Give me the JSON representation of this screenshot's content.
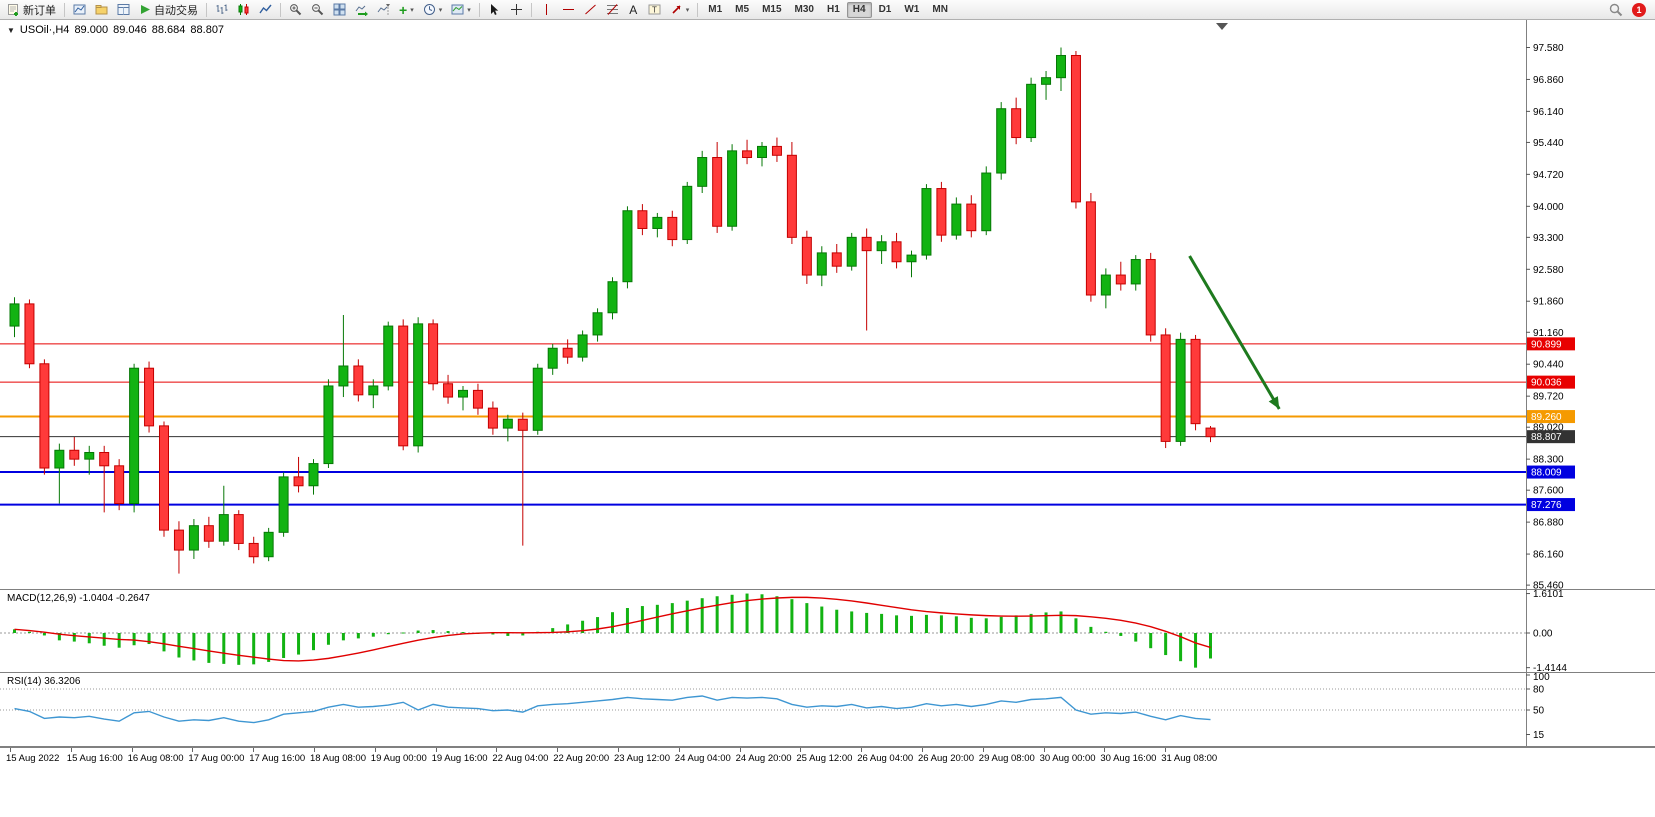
{
  "toolbar": {
    "new_order_label": "新订单",
    "autotrading_label": "自动交易",
    "timeframes": [
      "M1",
      "M5",
      "M15",
      "M30",
      "H1",
      "H4",
      "D1",
      "W1",
      "MN"
    ],
    "active_timeframe": "H4",
    "notification_count": "1"
  },
  "chart_header": {
    "symbol_period": "USOil·,H4",
    "open": "89.000",
    "high": "89.046",
    "low": "88.684",
    "close": "88.807"
  },
  "indicators": {
    "macd_label": "MACD(12,26,9)",
    "macd_main": "-1.0404",
    "macd_signal": "-0.2647",
    "rsi_label": "RSI(14)",
    "rsi_value": "36.3206"
  },
  "axes": {
    "price_ticks": [
      "97.580",
      "96.860",
      "96.140",
      "95.440",
      "94.720",
      "94.000",
      "93.300",
      "92.580",
      "91.860",
      "91.160",
      "90.440",
      "89.720",
      "89.020",
      "88.300",
      "87.600",
      "86.880",
      "86.160",
      "85.460"
    ],
    "macd_ticks": [
      "1.6101",
      "0.00",
      "-1.4144"
    ],
    "rsi_ticks": [
      "100",
      "80",
      "50",
      "15"
    ],
    "time_labels": [
      "15 Aug 2022",
      "15 Aug 16:00",
      "16 Aug 08:00",
      "17 Aug 00:00",
      "17 Aug 16:00",
      "18 Aug 08:00",
      "19 Aug 00:00",
      "19 Aug 16:00",
      "22 Aug 04:00",
      "22 Aug 20:00",
      "23 Aug 12:00",
      "24 Aug 04:00",
      "24 Aug 20:00",
      "25 Aug 12:00",
      "26 Aug 04:00",
      "26 Aug 20:00",
      "29 Aug 08:00",
      "30 Aug 00:00",
      "30 Aug 16:00",
      "31 Aug 08:00"
    ]
  },
  "levels": [
    {
      "price": 90.899,
      "label": "90.899",
      "color": "#E80000",
      "width": 1
    },
    {
      "price": 90.036,
      "label": "90.036",
      "color": "#E80000",
      "width": 1
    },
    {
      "price": 89.26,
      "label": "89.260",
      "color": "#F59A00",
      "width": 2
    },
    {
      "price": 88.807,
      "label": "88.807",
      "color": "#333333",
      "width": 1
    },
    {
      "price": 88.009,
      "label": "88.009",
      "color": "#0000E0",
      "width": 2
    },
    {
      "price": 87.276,
      "label": "87.276",
      "color": "#0000E0",
      "width": 2
    }
  ],
  "colors": {
    "up": "#12B312",
    "up_border": "#067806",
    "down": "#FF3A3A",
    "down_border": "#C40000",
    "macd_bar": "#12B312",
    "macd_signal": "#E00000",
    "rsi_line": "#3E96D2",
    "axis": "#808080",
    "arrow": "#1E7A1E"
  },
  "chart_data": {
    "type": "candlestick",
    "symbol": "USOil",
    "timeframe": "H4",
    "price_range": [
      85.35,
      98.2
    ],
    "candles": [
      [
        91.3,
        91.95,
        91.05,
        91.8
      ],
      [
        91.8,
        91.9,
        90.35,
        90.45
      ],
      [
        90.45,
        90.55,
        87.95,
        88.1
      ],
      [
        88.1,
        88.65,
        87.3,
        88.5
      ],
      [
        88.5,
        88.8,
        88.15,
        88.3
      ],
      [
        88.3,
        88.6,
        87.95,
        88.45
      ],
      [
        88.45,
        88.6,
        87.1,
        88.15
      ],
      [
        88.15,
        88.3,
        87.15,
        87.3
      ],
      [
        87.3,
        90.45,
        87.1,
        90.35
      ],
      [
        90.35,
        90.5,
        88.9,
        89.05
      ],
      [
        89.05,
        89.15,
        86.55,
        86.7
      ],
      [
        86.7,
        86.9,
        85.72,
        86.25
      ],
      [
        86.25,
        86.95,
        86.05,
        86.8
      ],
      [
        86.8,
        87.0,
        86.3,
        86.45
      ],
      [
        86.45,
        87.7,
        86.35,
        87.05
      ],
      [
        87.05,
        87.15,
        86.25,
        86.4
      ],
      [
        86.4,
        86.55,
        85.95,
        86.1
      ],
      [
        86.1,
        86.75,
        86.0,
        86.65
      ],
      [
        86.65,
        88.0,
        86.55,
        87.9
      ],
      [
        87.9,
        88.35,
        87.55,
        87.7
      ],
      [
        87.7,
        88.3,
        87.5,
        88.2
      ],
      [
        88.2,
        90.1,
        88.1,
        89.95
      ],
      [
        89.95,
        91.55,
        89.7,
        90.4
      ],
      [
        90.4,
        90.55,
        89.6,
        89.75
      ],
      [
        89.75,
        90.1,
        89.45,
        89.95
      ],
      [
        89.95,
        91.4,
        89.85,
        91.3
      ],
      [
        91.3,
        91.45,
        88.5,
        88.6
      ],
      [
        88.6,
        91.5,
        88.45,
        91.35
      ],
      [
        91.35,
        91.45,
        89.85,
        90.0
      ],
      [
        90.0,
        90.2,
        89.55,
        89.7
      ],
      [
        89.7,
        89.95,
        89.4,
        89.85
      ],
      [
        89.85,
        90.0,
        89.3,
        89.45
      ],
      [
        89.45,
        89.6,
        88.85,
        89.0
      ],
      [
        89.0,
        89.3,
        88.7,
        89.2
      ],
      [
        89.2,
        89.35,
        86.35,
        88.95
      ],
      [
        88.95,
        90.45,
        88.85,
        90.35
      ],
      [
        90.35,
        90.9,
        90.2,
        90.8
      ],
      [
        90.8,
        91.0,
        90.45,
        90.6
      ],
      [
        90.6,
        91.2,
        90.5,
        91.1
      ],
      [
        91.1,
        91.7,
        90.95,
        91.6
      ],
      [
        91.6,
        92.4,
        91.45,
        92.3
      ],
      [
        92.3,
        94.0,
        92.15,
        93.9
      ],
      [
        93.9,
        94.05,
        93.35,
        93.5
      ],
      [
        93.5,
        93.85,
        93.3,
        93.75
      ],
      [
        93.75,
        93.9,
        93.1,
        93.25
      ],
      [
        93.25,
        94.55,
        93.15,
        94.45
      ],
      [
        94.45,
        95.25,
        94.3,
        95.1
      ],
      [
        95.1,
        95.45,
        93.4,
        93.55
      ],
      [
        93.55,
        95.4,
        93.45,
        95.25
      ],
      [
        95.25,
        95.5,
        94.95,
        95.1
      ],
      [
        95.1,
        95.45,
        94.9,
        95.35
      ],
      [
        95.35,
        95.55,
        95.0,
        95.15
      ],
      [
        95.15,
        95.45,
        93.15,
        93.3
      ],
      [
        93.3,
        93.45,
        92.25,
        92.45
      ],
      [
        92.45,
        93.1,
        92.2,
        92.95
      ],
      [
        92.95,
        93.15,
        92.5,
        92.65
      ],
      [
        92.65,
        93.4,
        92.55,
        93.3
      ],
      [
        93.3,
        93.5,
        91.2,
        93.0
      ],
      [
        93.0,
        93.35,
        92.7,
        93.2
      ],
      [
        93.2,
        93.4,
        92.6,
        92.75
      ],
      [
        92.75,
        93.0,
        92.4,
        92.9
      ],
      [
        92.9,
        94.5,
        92.8,
        94.4
      ],
      [
        94.4,
        94.55,
        93.2,
        93.35
      ],
      [
        93.35,
        94.2,
        93.25,
        94.05
      ],
      [
        94.05,
        94.25,
        93.3,
        93.45
      ],
      [
        93.45,
        94.9,
        93.35,
        94.75
      ],
      [
        94.75,
        96.35,
        94.6,
        96.2
      ],
      [
        96.2,
        96.45,
        95.4,
        95.55
      ],
      [
        95.55,
        96.9,
        95.45,
        96.75
      ],
      [
        96.75,
        97.05,
        96.4,
        96.9
      ],
      [
        96.9,
        97.58,
        96.6,
        97.4
      ],
      [
        97.4,
        97.5,
        93.95,
        94.1
      ],
      [
        94.1,
        94.3,
        91.85,
        92.0
      ],
      [
        92.0,
        92.6,
        91.7,
        92.45
      ],
      [
        92.45,
        92.75,
        92.1,
        92.25
      ],
      [
        92.25,
        92.9,
        92.1,
        92.8
      ],
      [
        92.8,
        92.95,
        90.95,
        91.1
      ],
      [
        91.1,
        91.25,
        88.55,
        88.7
      ],
      [
        88.7,
        91.15,
        88.6,
        91.0
      ],
      [
        91.0,
        91.1,
        88.95,
        89.1
      ],
      [
        89.0,
        89.046,
        88.684,
        88.807
      ]
    ],
    "macd": {
      "histogram": [
        0.15,
        0.05,
        -0.1,
        -0.3,
        -0.35,
        -0.42,
        -0.52,
        -0.6,
        -0.5,
        -0.45,
        -0.75,
        -1.0,
        -1.12,
        -1.22,
        -1.26,
        -1.3,
        -1.28,
        -1.18,
        -1.02,
        -0.88,
        -0.7,
        -0.48,
        -0.3,
        -0.22,
        -0.15,
        -0.05,
        0.02,
        0.1,
        0.12,
        0.08,
        0.04,
        0.0,
        -0.06,
        -0.12,
        -0.1,
        0.05,
        0.2,
        0.35,
        0.5,
        0.65,
        0.85,
        1.02,
        1.1,
        1.15,
        1.22,
        1.32,
        1.42,
        1.5,
        1.56,
        1.61,
        1.58,
        1.5,
        1.38,
        1.22,
        1.08,
        0.95,
        0.88,
        0.82,
        0.78,
        0.72,
        0.7,
        0.74,
        0.72,
        0.68,
        0.62,
        0.6,
        0.66,
        0.72,
        0.78,
        0.84,
        0.88,
        0.6,
        0.25,
        0.05,
        -0.12,
        -0.35,
        -0.62,
        -0.9,
        -1.15,
        -1.4144,
        -1.0404
      ],
      "signal_period": 9,
      "range": [
        -1.75,
        1.75
      ]
    },
    "rsi": {
      "values": [
        52,
        48,
        38,
        40,
        39,
        41,
        37,
        34,
        46,
        48,
        40,
        34,
        36,
        35,
        39,
        34,
        32,
        36,
        44,
        46,
        48,
        54,
        58,
        54,
        55,
        57,
        61,
        50,
        58,
        54,
        53,
        52,
        49,
        50,
        47,
        56,
        58,
        59,
        61,
        63,
        65,
        68,
        66,
        65,
        64,
        68,
        70,
        64,
        68,
        67,
        68,
        66,
        58,
        54,
        56,
        55,
        58,
        53,
        55,
        52,
        54,
        59,
        56,
        58,
        55,
        58,
        63,
        61,
        65,
        66,
        68,
        50,
        44,
        46,
        45,
        47,
        41,
        36,
        42,
        38,
        36.32
      ],
      "range": [
        0,
        100
      ],
      "levels": [
        80,
        50
      ]
    },
    "annotation_arrow": {
      "from_index": 78.6,
      "from_price": 92.88,
      "to_index": 84.6,
      "to_price": 89.43,
      "color": "#1E7A1E"
    }
  }
}
